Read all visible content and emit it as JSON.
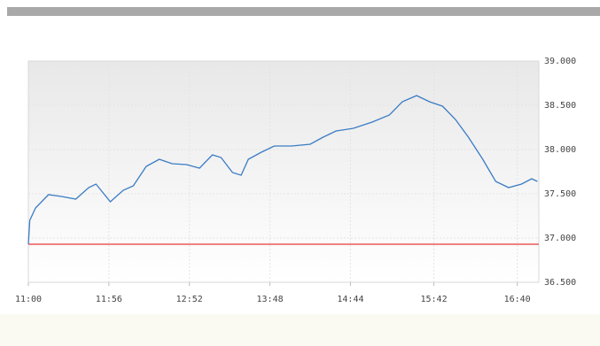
{
  "chart_data": {
    "type": "line",
    "x": [
      "11:00",
      "11:01",
      "11:05",
      "11:14",
      "11:23",
      "11:33",
      "11:42",
      "11:47",
      "11:57",
      "12:06",
      "12:13",
      "12:22",
      "12:31",
      "12:40",
      "12:50",
      "12:59",
      "13:08",
      "13:14",
      "13:22",
      "13:28",
      "13:33",
      "13:42",
      "13:51",
      "14:03",
      "14:16",
      "14:25",
      "14:34",
      "14:46",
      "14:59",
      "15:11",
      "15:20",
      "15:30",
      "15:39",
      "15:48",
      "15:57",
      "16:06",
      "16:16",
      "16:25",
      "16:34",
      "16:43",
      "16:50",
      "16:54"
    ],
    "values": [
      36.93,
      37.2,
      37.34,
      37.49,
      37.47,
      37.44,
      37.57,
      37.61,
      37.41,
      37.54,
      37.59,
      37.81,
      37.89,
      37.84,
      37.83,
      37.79,
      37.94,
      37.91,
      37.74,
      37.71,
      37.89,
      37.97,
      38.04,
      38.04,
      38.06,
      38.14,
      38.21,
      38.24,
      38.31,
      38.39,
      38.54,
      38.61,
      38.54,
      38.49,
      38.34,
      38.14,
      37.89,
      37.64,
      37.57,
      37.61,
      37.67,
      37.64
    ],
    "color": "#3a7cc4",
    "reference_line": {
      "value": 36.93,
      "color": "#f08080"
    },
    "xlim": [
      "11:00",
      "16:55"
    ],
    "xticks": [
      "11:00",
      "11:56",
      "12:52",
      "13:48",
      "14:44",
      "15:42",
      "16:40"
    ],
    "ylim": [
      36.5,
      39
    ],
    "yticks": [
      {
        "value": 36.5,
        "label": "36.500"
      },
      {
        "value": 37,
        "label": "37.000"
      },
      {
        "value": 37.5,
        "label": "37.500"
      },
      {
        "value": 38,
        "label": "38.000"
      },
      {
        "value": 38.5,
        "label": "38.500"
      },
      {
        "value": 39,
        "label": "39.000"
      }
    ],
    "grid": true
  }
}
